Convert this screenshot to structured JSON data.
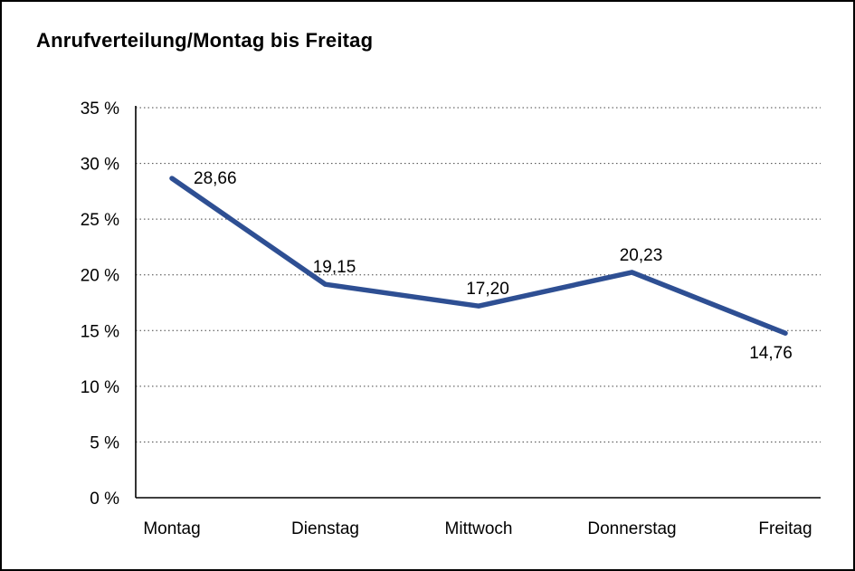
{
  "chart_data": {
    "type": "line",
    "title": "Anrufverteilung/Montag bis Freitag",
    "categories": [
      "Montag",
      "Dienstag",
      "Mittwoch",
      "Donnerstag",
      "Freitag"
    ],
    "series": [
      {
        "name": "Anrufverteilung",
        "values": [
          28.66,
          19.15,
          17.2,
          20.23,
          14.76
        ]
      }
    ],
    "data_labels": [
      "28,66",
      "19,15",
      "17,20",
      "20,23",
      "14,76"
    ],
    "label_positions": [
      "right",
      "above",
      "above",
      "above",
      "below"
    ],
    "xlabel": "",
    "ylabel": "",
    "ylim": [
      0,
      35
    ],
    "y_ticks": [
      0,
      5,
      10,
      15,
      20,
      25,
      30,
      35
    ],
    "y_tick_labels": [
      "0 %",
      "5 %",
      "10 %",
      "15 %",
      "20 %",
      "25 %",
      "30 %",
      "35 %"
    ],
    "grid": "dotted-horizontal",
    "legend": "none"
  },
  "colors": {
    "line": "#2e4f93",
    "axis": "#000000",
    "grid": "#444444",
    "text": "#000000",
    "frame_border": "#000000",
    "background": "#ffffff"
  }
}
